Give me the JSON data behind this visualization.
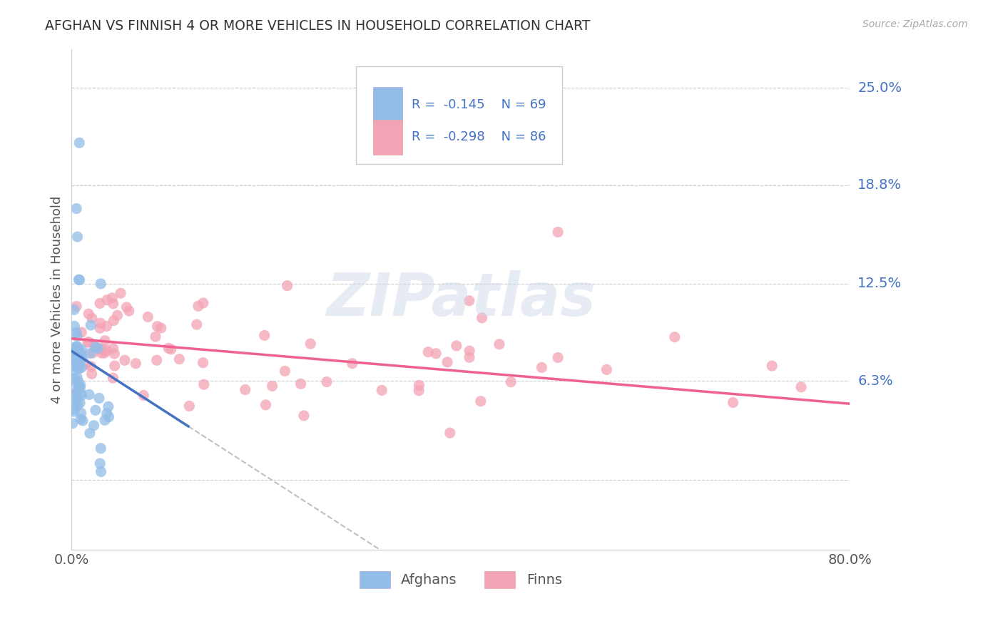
{
  "title": "AFGHAN VS FINNISH 4 OR MORE VEHICLES IN HOUSEHOLD CORRELATION CHART",
  "source": "Source: ZipAtlas.com",
  "ylabel": "4 or more Vehicles in Household",
  "xmin": 0.0,
  "xmax": 0.8,
  "ymin": -0.045,
  "ymax": 0.275,
  "ytick_vals": [
    0.0,
    0.063,
    0.125,
    0.188,
    0.25
  ],
  "ytick_labels": [
    "",
    "6.3%",
    "12.5%",
    "18.8%",
    "25.0%"
  ],
  "color_afghan": "#92bde8",
  "color_finn": "#f4a3b5",
  "color_afghan_line": "#4472c4",
  "color_finn_line": "#f06090",
  "color_dashed": "#c0c0c0",
  "watermark": "ZIPatlas",
  "legend_line1": "R =  -0.145    N = 69",
  "legend_line2": "R =  -0.298    N = 86"
}
